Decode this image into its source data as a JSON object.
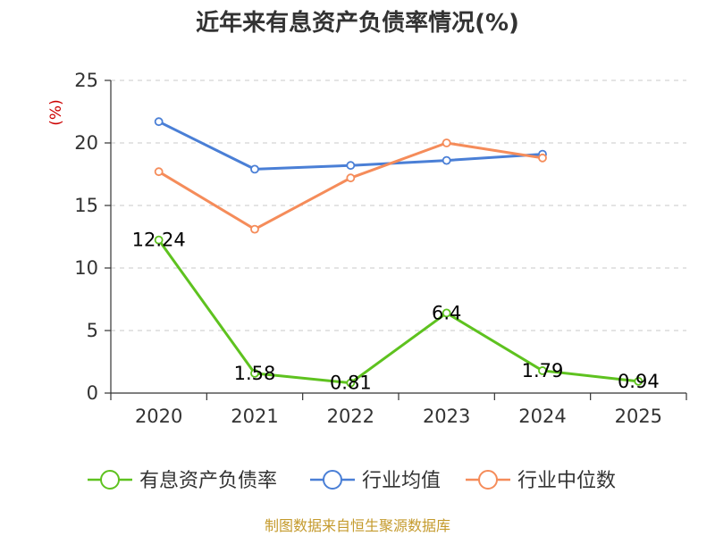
{
  "chart_data": {
    "type": "line",
    "title": "近年来有息资产负债率情况(%)",
    "ylabel": "(%)",
    "xlabel": "",
    "categories": [
      "2020",
      "2021",
      "2022",
      "2023",
      "2024",
      "2025"
    ],
    "ylim": [
      0,
      25
    ],
    "yticks": [
      0,
      5,
      10,
      15,
      20,
      25
    ],
    "grid": true,
    "legend_position": "bottom",
    "series": [
      {
        "name": "有息资产负债率",
        "color": "#5ec21f",
        "values": [
          12.24,
          1.58,
          0.81,
          6.4,
          1.79,
          0.94
        ],
        "labels": [
          "12.24",
          "1.58",
          "0.81",
          "6.4",
          "1.79",
          "0.94"
        ]
      },
      {
        "name": "行业均值",
        "color": "#4a7fd6",
        "values": [
          21.7,
          17.9,
          18.2,
          18.6,
          19.1,
          null
        ]
      },
      {
        "name": "行业中位数",
        "color": "#f58c5a",
        "values": [
          17.7,
          13.1,
          17.2,
          20.0,
          18.8,
          null
        ]
      }
    ]
  },
  "source": "制图数据来自恒生聚源数据库"
}
